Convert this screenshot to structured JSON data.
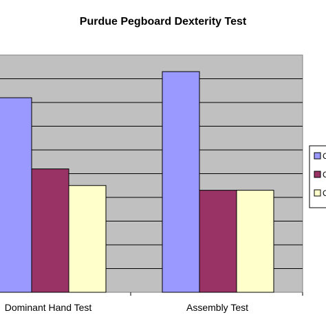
{
  "chart_data": {
    "type": "bar",
    "title": "Purdue Pegboard Dexterity Test",
    "categories": [
      "Dominant Hand Test",
      "Assembly Test"
    ],
    "series": [
      {
        "values": [
          82,
          93
        ],
        "color": "#9999ff"
      },
      {
        "values": [
          52,
          43
        ],
        "color": "#993366"
      },
      {
        "values": [
          45,
          43
        ],
        "color": "#ffffcc"
      }
    ],
    "legend_labels": [
      "C",
      "C",
      "C"
    ],
    "ylim": [
      0,
      100
    ],
    "ytick_step": 10,
    "grid": true,
    "legend_position": "right",
    "plot_background": "#c0c0c0"
  }
}
